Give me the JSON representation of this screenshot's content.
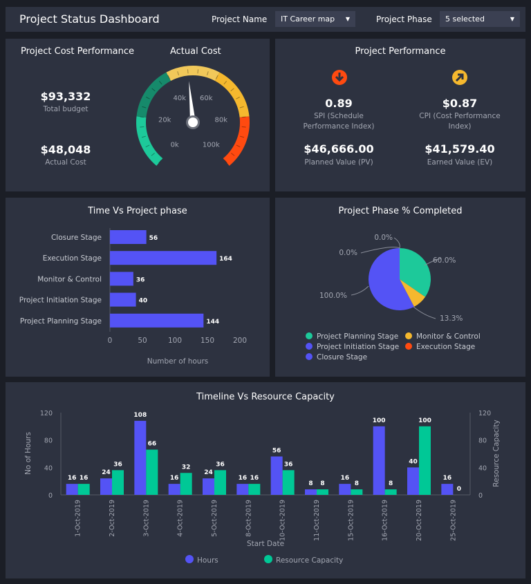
{
  "header": {
    "title": "Project Status Dashboard",
    "project_name_label": "Project Name",
    "project_name_value": "IT Career map",
    "project_phase_label": "Project Phase",
    "project_phase_value": "5 selected"
  },
  "cost": {
    "title": "Project Cost Performance",
    "total_budget": "$93,332",
    "total_budget_label": "Total budget",
    "actual_cost": "$48,048",
    "actual_cost_label": "Actual Cost",
    "gauge": {
      "title": "Actual Cost",
      "value": 48048,
      "min": 0,
      "max": 100000,
      "ticks": [
        "0k",
        "20k",
        "40k",
        "60k",
        "80k",
        "100k"
      ],
      "bands": [
        {
          "from": 0,
          "to": 20000,
          "color": "#1dc99a"
        },
        {
          "from": 20000,
          "to": 40000,
          "color": "#168a6b"
        },
        {
          "from": 40000,
          "to": 60000,
          "color": "#f1c85a"
        },
        {
          "from": 60000,
          "to": 80000,
          "color": "#f5b82e"
        },
        {
          "from": 80000,
          "to": 100000,
          "color": "#ff4a10"
        }
      ]
    }
  },
  "performance": {
    "title": "Project Performance",
    "spi": {
      "value": "0.89",
      "label": "SPI (Schedule Performance Index)",
      "icon": "arrow-down-circle-icon",
      "color": "#ff4a10"
    },
    "cpi": {
      "value": "$0.87",
      "label": "CPI (Cost Performance Index)",
      "icon": "arrow-up-right-circle-icon",
      "color": "#f5b82e"
    },
    "pv": {
      "value": "$46,666.00",
      "label": "Planned Value (PV)"
    },
    "ev": {
      "value": "$41,579.40",
      "label": "Earned Value (EV)"
    }
  },
  "chart_data": [
    {
      "type": "bar",
      "orientation": "horizontal",
      "title": "Time Vs Project phase",
      "xlabel": "Number of hours",
      "xlim": [
        0,
        200
      ],
      "xticks": [
        "0",
        "50",
        "100",
        "150",
        "200"
      ],
      "categories": [
        "Closure Stage",
        "Execution Stage",
        "Monitor & Control",
        "Project Initiation Stage",
        "Project Planning Stage"
      ],
      "values": [
        56,
        164,
        36,
        40,
        144
      ],
      "color": "#5453f5"
    },
    {
      "type": "pie",
      "title": "Project Phase % Completed",
      "slices": [
        {
          "name": "Project Planning Stage",
          "label": "60.0%",
          "value": 60,
          "color": "#1dc99a"
        },
        {
          "name": "Monitor & Control",
          "label": "13.3%",
          "value": 13.3,
          "color": "#f5b82e"
        },
        {
          "name": "Project Initiation Stage",
          "label": "100.0%",
          "value": 100,
          "color": "#5453f5"
        },
        {
          "name": "Closure Stage",
          "label": "0.0%",
          "value": 0,
          "color": "#5453f5"
        },
        {
          "name": "Execution Stage",
          "label": "0.0%",
          "value": 0,
          "color": "#ff4a10"
        }
      ],
      "legend": [
        {
          "name": "Project Planning Stage",
          "color": "#1dc99a"
        },
        {
          "name": "Monitor & Control",
          "color": "#f5b82e"
        },
        {
          "name": "Project Initiation Stage",
          "color": "#5453f5"
        },
        {
          "name": "Execution Stage",
          "color": "#ff4a10"
        },
        {
          "name": "Closure Stage",
          "color": "#5453f5"
        }
      ],
      "legend_position": "bottom"
    },
    {
      "type": "bar",
      "title": "Timeline Vs Resource Capacity",
      "xlabel": "Start Date",
      "ylabel": "No of Hours",
      "y2label": "Resource Capacity",
      "ylim": [
        0,
        120
      ],
      "yticks": [
        "0",
        "40",
        "80",
        "120"
      ],
      "categories": [
        "1-Oct-2019",
        "2-Oct-2019",
        "3-Oct-2019",
        "4-Oct-2019",
        "5-Oct-2019",
        "8-Oct-2019",
        "10-Oct-2019",
        "11-Oct-2019",
        "15-Oct-2019",
        "16-Oct-2019",
        "20-Oct-2019",
        "25-Oct-2019"
      ],
      "series": [
        {
          "name": "Hours",
          "color": "#5453f5",
          "values": [
            16,
            24,
            108,
            16,
            24,
            16,
            56,
            8,
            16,
            100,
            40,
            16
          ]
        },
        {
          "name": "Resource Capacity",
          "color": "#00c896",
          "values": [
            16,
            36,
            66,
            32,
            36,
            16,
            36,
            8,
            8,
            8,
            100,
            0
          ]
        }
      ],
      "legend_position": "bottom"
    }
  ]
}
